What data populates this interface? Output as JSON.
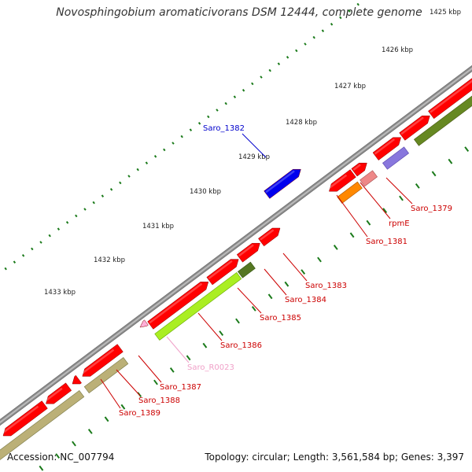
{
  "title": "Novosphingobium aromaticivorans DSM 12444, complete genome",
  "ruler": {
    "ticks": [
      {
        "label": "1425 kbp"
      },
      {
        "label": "1426 kbp"
      },
      {
        "label": "1427 kbp"
      },
      {
        "label": "1428 kbp"
      },
      {
        "label": "1429 kbp"
      },
      {
        "label": "1430 kbp"
      },
      {
        "label": "1431 kbp"
      },
      {
        "label": "1432 kbp"
      },
      {
        "label": "1433 kbp"
      }
    ]
  },
  "features": [
    {
      "label": "Saro_1379",
      "color": "#cc0000"
    },
    {
      "label": "rpmE",
      "color": "#cc0000"
    },
    {
      "label": "Saro_1381",
      "color": "#cc0000"
    },
    {
      "label": "Saro_1382",
      "color": "#0000cc"
    },
    {
      "label": "Saro_1383",
      "color": "#cc0000"
    },
    {
      "label": "Saro_1384",
      "color": "#cc0000"
    },
    {
      "label": "Saro_1385",
      "color": "#cc0000"
    },
    {
      "label": "Saro_1386",
      "color": "#cc0000"
    },
    {
      "label": "Saro_R0023",
      "color": "#f0a0c8"
    },
    {
      "label": "Saro_1387",
      "color": "#cc0000"
    },
    {
      "label": "Saro_1388",
      "color": "#cc0000"
    },
    {
      "label": "Saro_1389",
      "color": "#cc0000"
    }
  ],
  "colors": {
    "cds": "#ff0000",
    "backbone": "#888888",
    "tick": "#1a7a1a",
    "label": "#cc0000",
    "blue_gene": "#0000ee",
    "orange_gene": "#ff8800",
    "purple_gene": "#8877dd",
    "pink_gene": "#ee8888",
    "lime_gene": "#aaee22",
    "olive_gene": "#bbb077",
    "dark_green_gene": "#557722"
  },
  "footer": {
    "accession": "Accession: NC_007794",
    "topology": "Topology: circular; Length: 3,561,584 bp; Genes: 3,397"
  }
}
